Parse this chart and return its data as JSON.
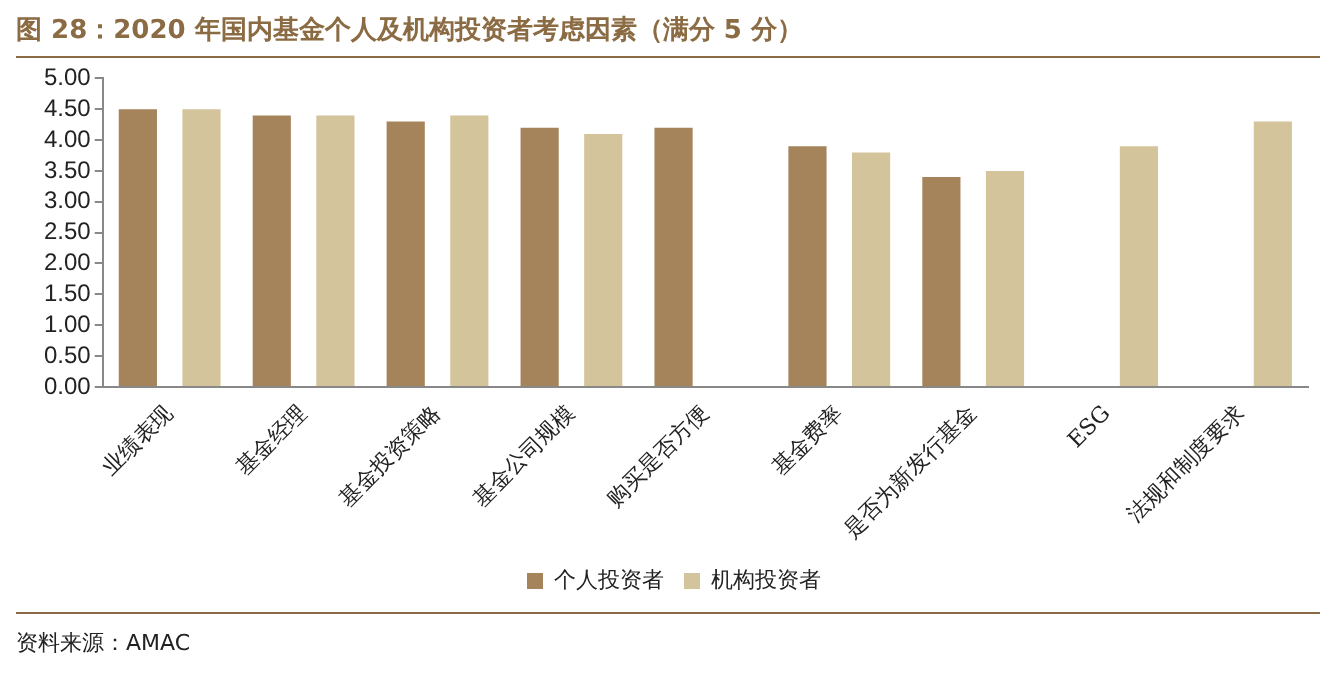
{
  "chart_data": {
    "type": "bar",
    "title": "图 28：2020 年国内基金个人及机构投资者考虑因素（满分 5 分）",
    "categories": [
      "业绩表现",
      "基金经理",
      "基金投资策略",
      "基金公司规模",
      "购买是否方便",
      "基金费率",
      "是否为新发行基金",
      "ESG",
      "法规和制度要求"
    ],
    "series": [
      {
        "name": "个人投资者",
        "color": "#a5835b",
        "values": [
          4.5,
          4.4,
          4.3,
          4.2,
          4.2,
          3.9,
          3.4,
          null,
          null
        ]
      },
      {
        "name": "机构投资者",
        "color": "#d4c49c",
        "values": [
          4.5,
          4.4,
          4.4,
          4.1,
          null,
          3.8,
          3.5,
          3.9,
          4.3
        ]
      }
    ],
    "ylim": [
      0,
      5
    ],
    "yticks": [
      {
        "value": 0,
        "label": "0.00"
      },
      {
        "value": 0.5,
        "label": "0.50"
      },
      {
        "value": 1,
        "label": "1.00"
      },
      {
        "value": 1.5,
        "label": "1.50"
      },
      {
        "value": 2,
        "label": "2.00"
      },
      {
        "value": 2.5,
        "label": "2.50"
      },
      {
        "value": 3,
        "label": "3.00"
      },
      {
        "value": 3.5,
        "label": "3.50"
      },
      {
        "value": 4,
        "label": "4.00"
      },
      {
        "value": 4.5,
        "label": "4.50"
      },
      {
        "value": 5,
        "label": "5.00"
      }
    ],
    "grid": false,
    "legend": "bottom",
    "annotations": [
      "资料来源：AMAC"
    ]
  }
}
